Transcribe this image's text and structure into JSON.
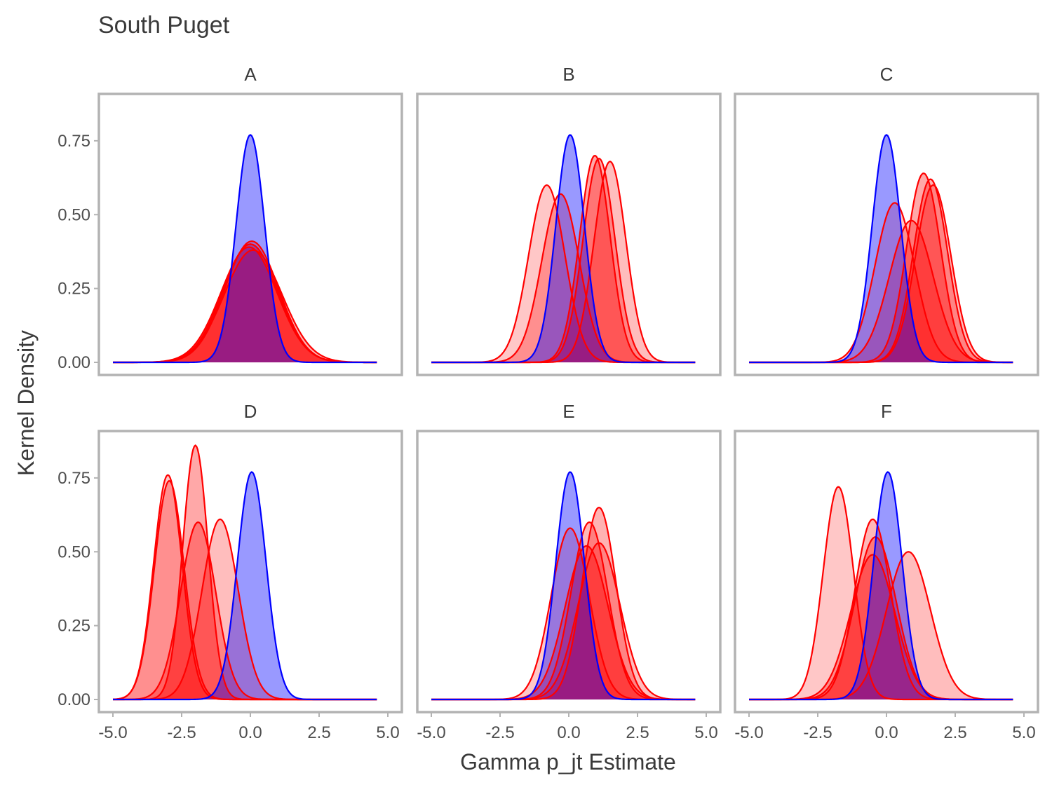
{
  "chart_data": {
    "type": "area",
    "title": "South Puget",
    "xlabel": "Gamma p_jt Estimate",
    "ylabel": "Kernel Density",
    "xlim": [
      -5.0,
      5.0
    ],
    "ylim": [
      0.0,
      0.9
    ],
    "x_ticks": [
      "-5.0",
      "-2.5",
      "0.0",
      "2.5",
      "5.0"
    ],
    "y_ticks": [
      "0.00",
      "0.25",
      "0.50",
      "0.75"
    ],
    "grid": false,
    "colors": {
      "prior": "#0000ff",
      "posterior": "#ff0000",
      "border": "#b3b3b3"
    },
    "panels": [
      {
        "label": "A",
        "prior": {
          "mean": 0.0,
          "sd": 0.52,
          "peak": 0.77
        },
        "curves": [
          {
            "mean": 0.0,
            "sd": 1.0,
            "peak": 0.4
          },
          {
            "mean": 0.05,
            "sd": 0.98,
            "peak": 0.41
          },
          {
            "mean": -0.05,
            "sd": 1.02,
            "peak": 0.39
          },
          {
            "mean": 0.1,
            "sd": 1.05,
            "peak": 0.38
          },
          {
            "mean": 0.0,
            "sd": 1.0,
            "peak": 0.4
          }
        ]
      },
      {
        "label": "B",
        "prior": {
          "mean": 0.05,
          "sd": 0.52,
          "peak": 0.77
        },
        "curves": [
          {
            "mean": -0.8,
            "sd": 0.66,
            "peak": 0.6
          },
          {
            "mean": -0.3,
            "sd": 0.68,
            "peak": 0.57
          },
          {
            "mean": 0.95,
            "sd": 0.56,
            "peak": 0.7
          },
          {
            "mean": 1.1,
            "sd": 0.58,
            "peak": 0.69
          },
          {
            "mean": 1.5,
            "sd": 0.58,
            "peak": 0.68
          }
        ]
      },
      {
        "label": "C",
        "prior": {
          "mean": 0.0,
          "sd": 0.52,
          "peak": 0.77
        },
        "curves": [
          {
            "mean": 0.3,
            "sd": 0.72,
            "peak": 0.54
          },
          {
            "mean": 0.9,
            "sd": 0.8,
            "peak": 0.48
          },
          {
            "mean": 1.35,
            "sd": 0.62,
            "peak": 0.64
          },
          {
            "mean": 1.6,
            "sd": 0.62,
            "peak": 0.62
          },
          {
            "mean": 1.7,
            "sd": 0.64,
            "peak": 0.6
          }
        ]
      },
      {
        "label": "D",
        "prior": {
          "mean": 0.05,
          "sd": 0.52,
          "peak": 0.77
        },
        "curves": [
          {
            "mean": -3.0,
            "sd": 0.52,
            "peak": 0.76
          },
          {
            "mean": -2.95,
            "sd": 0.54,
            "peak": 0.74
          },
          {
            "mean": -2.0,
            "sd": 0.46,
            "peak": 0.86
          },
          {
            "mean": -1.9,
            "sd": 0.64,
            "peak": 0.6
          },
          {
            "mean": -1.1,
            "sd": 0.66,
            "peak": 0.61
          }
        ]
      },
      {
        "label": "E",
        "prior": {
          "mean": 0.05,
          "sd": 0.52,
          "peak": 0.77
        },
        "curves": [
          {
            "mean": 0.05,
            "sd": 0.69,
            "peak": 0.58
          },
          {
            "mean": 0.75,
            "sd": 0.67,
            "peak": 0.6
          },
          {
            "mean": 0.65,
            "sd": 0.78,
            "peak": 0.52
          },
          {
            "mean": 1.1,
            "sd": 0.62,
            "peak": 0.65
          },
          {
            "mean": 1.1,
            "sd": 0.76,
            "peak": 0.53
          }
        ]
      },
      {
        "label": "F",
        "prior": {
          "mean": 0.05,
          "sd": 0.52,
          "peak": 0.77
        },
        "curves": [
          {
            "mean": -1.75,
            "sd": 0.55,
            "peak": 0.72
          },
          {
            "mean": -0.5,
            "sd": 0.65,
            "peak": 0.61
          },
          {
            "mean": -0.4,
            "sd": 0.75,
            "peak": 0.55
          },
          {
            "mean": -0.5,
            "sd": 0.8,
            "peak": 0.49
          },
          {
            "mean": 0.8,
            "sd": 0.8,
            "peak": 0.5
          }
        ]
      }
    ]
  }
}
